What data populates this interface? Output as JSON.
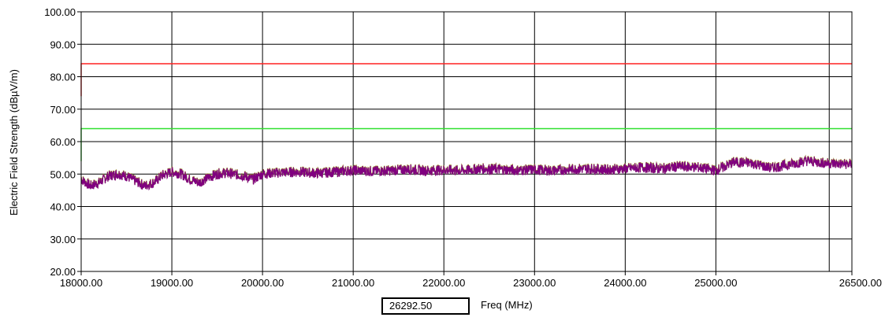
{
  "chart_data": {
    "type": "line",
    "title": "",
    "xlabel": "Freq (MHz)",
    "ylabel": "Electric Field Strength (dBµV/m)",
    "xlim": [
      18000,
      26500
    ],
    "ylim": [
      20,
      100
    ],
    "x_ticks": [
      {
        "value": 18000,
        "label": "18000.00"
      },
      {
        "value": 19000,
        "label": "19000.00"
      },
      {
        "value": 20000,
        "label": "20000.00"
      },
      {
        "value": 21000,
        "label": "21000.00"
      },
      {
        "value": 22000,
        "label": "22000.00"
      },
      {
        "value": 23000,
        "label": "23000.00"
      },
      {
        "value": 24000,
        "label": "24000.00"
      },
      {
        "value": 25000,
        "label": "25000.00"
      },
      {
        "value": 26500,
        "label": "26500.00"
      }
    ],
    "x_gridlines": [
      18000,
      19000,
      20000,
      21000,
      22000,
      23000,
      24000,
      25000,
      26250,
      26500
    ],
    "y_ticks": [
      {
        "value": 20,
        "label": "20.00"
      },
      {
        "value": 30,
        "label": "30.00"
      },
      {
        "value": 40,
        "label": "40.00"
      },
      {
        "value": 50,
        "label": "50.00"
      },
      {
        "value": 60,
        "label": "60.00"
      },
      {
        "value": 70,
        "label": "70.00"
      },
      {
        "value": 80,
        "label": "80.00"
      },
      {
        "value": 90,
        "label": "90.00"
      },
      {
        "value": 100,
        "label": "100.00"
      }
    ],
    "grid": true,
    "series": [
      {
        "role": "limit",
        "color": "#ff2020",
        "x": [
          18000,
          18000,
          26500
        ],
        "y": [
          74,
          84,
          84
        ]
      },
      {
        "role": "limit",
        "color": "#30e030",
        "x": [
          18000,
          18000,
          26500
        ],
        "y": [
          54,
          64,
          64
        ]
      },
      {
        "role": "measurement",
        "color": "#800080",
        "noise_color": "#a0a020",
        "x": [
          18000,
          18100,
          18200,
          18300,
          18400,
          18500,
          18600,
          18700,
          18800,
          18900,
          19000,
          19100,
          19200,
          19300,
          19400,
          19500,
          19600,
          19700,
          19800,
          19900,
          20000,
          20200,
          20400,
          20600,
          20800,
          21000,
          21200,
          21400,
          21600,
          21800,
          22000,
          22200,
          22400,
          22600,
          22800,
          23000,
          23200,
          23400,
          23600,
          23800,
          24000,
          24200,
          24400,
          24600,
          24800,
          25000,
          25200,
          25400,
          25600,
          25800,
          26000,
          26200,
          26400,
          26500
        ],
        "y": [
          48.5,
          46.5,
          47.5,
          49.5,
          50.2,
          49.5,
          48,
          46.5,
          47.5,
          49.8,
          50.8,
          50.2,
          48.5,
          47.5,
          49,
          50.2,
          50.5,
          50,
          49.5,
          48.5,
          50.2,
          50.6,
          50.8,
          50.4,
          50.8,
          51.3,
          51,
          51.2,
          51.6,
          51.2,
          51.4,
          51.2,
          51.8,
          51.6,
          51.3,
          51.5,
          51.2,
          51.6,
          51.8,
          51.5,
          51.8,
          52.2,
          51.8,
          52.5,
          52.2,
          51.2,
          53.8,
          53.5,
          52,
          53,
          54.2,
          53.5,
          53.2,
          53.2
        ]
      }
    ],
    "cursor_value": "26292.50"
  }
}
